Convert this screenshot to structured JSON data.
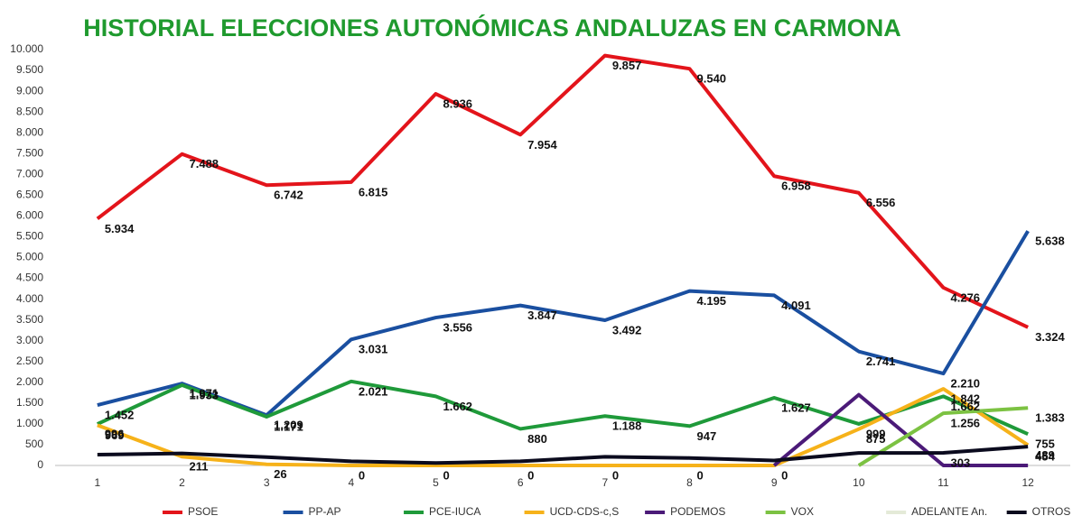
{
  "chart_data": {
    "type": "line",
    "title": "HISTORIAL ELECCIONES AUTONÓMICAS ANDALUZAS EN CARMONA",
    "categories": [
      "1",
      "2",
      "3",
      "4",
      "5",
      "6",
      "7",
      "8",
      "9",
      "10",
      "11",
      "12"
    ],
    "ylim": [
      0,
      10000
    ],
    "yticks": [
      0,
      500,
      {
        "value": 1000,
        "label": "1.000"
      },
      {
        "value": 1500,
        "label": "1.500"
      },
      {
        "value": 2000,
        "label": "2.000"
      },
      {
        "value": 2500,
        "label": "2.500"
      },
      {
        "value": 3000,
        "label": "3.000"
      },
      {
        "value": 3500,
        "label": "3.500"
      },
      {
        "value": 4000,
        "label": "4.000"
      },
      {
        "value": 4500,
        "label": "4.500"
      },
      {
        "value": 5000,
        "label": "5.000"
      },
      {
        "value": 5500,
        "label": "5.500"
      },
      {
        "value": 6000,
        "label": "6.000"
      },
      {
        "value": 6500,
        "label": "6.500"
      },
      {
        "value": 7000,
        "label": "7.000"
      },
      {
        "value": 7500,
        "label": "7.500"
      },
      {
        "value": 8000,
        "label": "8.000"
      },
      {
        "value": 8500,
        "label": "8.500"
      },
      {
        "value": 9000,
        "label": "9.000"
      },
      {
        "value": 9500,
        "label": "9.500"
      },
      {
        "value": 10000,
        "label": "10.000"
      }
    ],
    "grid": false,
    "legend": "bottom",
    "series": [
      {
        "name": "PSOE",
        "color": "#e3141b",
        "values": [
          5934,
          7488,
          6742,
          6815,
          8936,
          7954,
          9857,
          9540,
          6958,
          6556,
          4276,
          3324
        ],
        "value_labels": [
          "5.934",
          "7.488",
          "6.742",
          "6.815",
          "8.936",
          "7.954",
          "9.857",
          "9.540",
          "6.958",
          "6.556",
          "4.276",
          "3.324"
        ]
      },
      {
        "name": "PP-AP",
        "color": "#1a4fa0",
        "values": [
          1452,
          1971,
          1209,
          3031,
          3556,
          3847,
          3492,
          4195,
          4091,
          2741,
          2210,
          5638
        ],
        "value_labels": [
          "1.452",
          "1.971",
          "1.209",
          "3.031",
          "3.556",
          "3.847",
          "3.492",
          "4.195",
          "4.091",
          "2.741",
          "2.210",
          "5.638"
        ]
      },
      {
        "name": "PCE-IUCA",
        "color": "#1f9a3a",
        "values": [
          996,
          1933,
          1171,
          2021,
          1662,
          880,
          1188,
          947,
          1627,
          999,
          1662,
          755
        ],
        "value_labels": [
          "996",
          "1.933",
          "1.171",
          "2.021",
          "1.662",
          "880",
          "1.188",
          "947",
          "1.627",
          "999",
          "1.662",
          "755"
        ]
      },
      {
        "name": "UCD-CDS-c,S",
        "color": "#f6b21a",
        "values": [
          969,
          211,
          26,
          0,
          0,
          0,
          0,
          0,
          0,
          875,
          1842,
          489
        ],
        "value_labels": [
          "969",
          "211",
          "26",
          "0",
          "0",
          "0",
          "0",
          "0",
          "0",
          "875",
          "1.842",
          "489"
        ]
      },
      {
        "name": "PODEMOS",
        "color": "#4b1a78",
        "values": [
          null,
          null,
          null,
          null,
          null,
          null,
          null,
          null,
          0,
          1700,
          0,
          0
        ]
      },
      {
        "name": "VOX",
        "color": "#7cc242",
        "values": [
          null,
          null,
          null,
          null,
          null,
          null,
          null,
          null,
          null,
          0,
          1256,
          1383
        ],
        "value_labels": [
          null,
          null,
          null,
          null,
          null,
          null,
          null,
          null,
          null,
          null,
          "1.256",
          "1.383"
        ]
      },
      {
        "name": "ADELANTE An.",
        "color": "#e4ead8",
        "values": [
          null,
          null,
          null,
          null,
          null,
          null,
          null,
          null,
          null,
          null,
          null,
          null
        ]
      },
      {
        "name": "OTROS",
        "color": "#0b0b1e",
        "values": [
          260,
          290,
          200,
          100,
          60,
          100,
          210,
          180,
          120,
          300,
          303,
          454
        ],
        "value_labels": [
          null,
          null,
          null,
          null,
          null,
          null,
          null,
          null,
          null,
          null,
          "303",
          "454"
        ]
      }
    ]
  }
}
